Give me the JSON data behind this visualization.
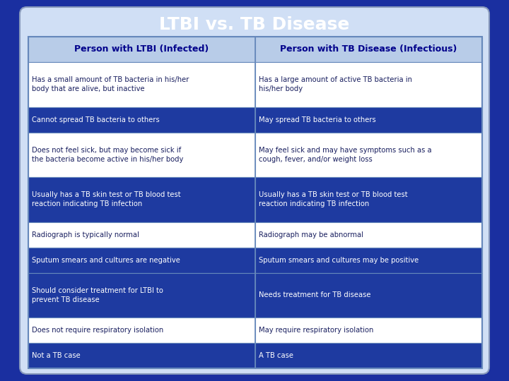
{
  "title": "LTBI vs. TB Disease",
  "title_color": "#FFFFFF",
  "title_fontsize": 18,
  "bg_color": "#1a2fa0",
  "container_bg": "#c8d8f0",
  "container_edge": "#8899cc",
  "header_bg": "#b8cce8",
  "header_text_color": "#00008B",
  "row_colors": [
    "#FFFFFF",
    "#1e3aa0",
    "#FFFFFF",
    "#1e3aa0",
    "#FFFFFF",
    "#1e3aa0",
    "#1e3aa0",
    "#FFFFFF",
    "#1e3aa0"
  ],
  "row_text_colors": [
    "#1a2060",
    "#FFFFFF",
    "#1a2060",
    "#FFFFFF",
    "#1a2060",
    "#FFFFFF",
    "#FFFFFF",
    "#1a2060",
    "#FFFFFF"
  ],
  "border_color": "#6688bb",
  "col1_header": "Person with LTBI (Infected)",
  "col2_header": "Person with TB Disease (Infectious)",
  "rows": [
    [
      "Has a small amount of TB bacteria in his/her\nbody that are alive, but inactive",
      "Has a large amount of active TB bacteria in\nhis/her body"
    ],
    [
      "Cannot spread TB bacteria to others",
      "May spread TB bacteria to others"
    ],
    [
      "Does not feel sick, but may become sick if\nthe bacteria become active in his/her body",
      "May feel sick and may have symptoms such as a\ncough, fever, and/or weight loss"
    ],
    [
      "Usually has a TB skin test or TB blood test\nreaction indicating TB infection",
      "Usually has a TB skin test or TB blood test\nreaction indicating TB infection"
    ],
    [
      "Radiograph is typically normal",
      "Radiograph may be abnormal"
    ],
    [
      "Sputum smears and cultures are negative",
      "Sputum smears and cultures may be positive"
    ],
    [
      "Should consider treatment for LTBI to\nprevent TB disease",
      "Needs treatment for TB disease"
    ],
    [
      "Does not require respiratory isolation",
      "May require respiratory isolation"
    ],
    [
      "Not a TB case",
      "A TB case"
    ]
  ],
  "row_proportions": [
    0.115,
    0.065,
    0.115,
    0.115,
    0.065,
    0.065,
    0.115,
    0.065,
    0.065
  ]
}
